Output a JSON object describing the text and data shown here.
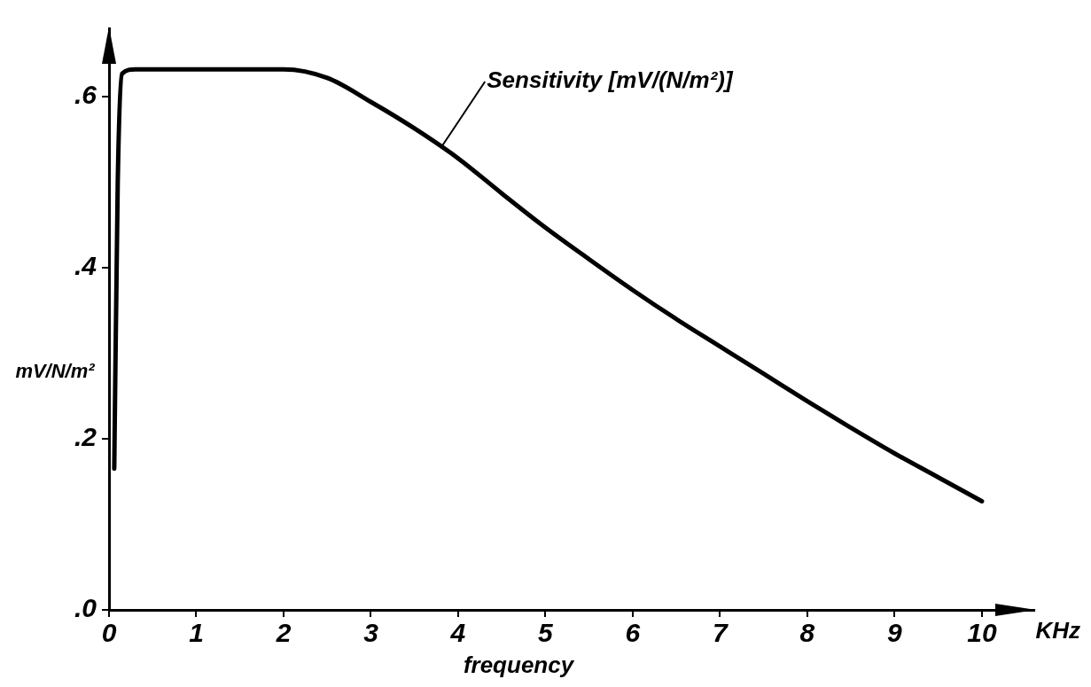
{
  "chart_data": {
    "type": "line",
    "xlabel": "frequency",
    "ylabel": "mV/N/m²",
    "xlim": [
      0,
      10.6
    ],
    "ylim": [
      0,
      0.68
    ],
    "xticks": [
      0,
      1,
      2,
      3,
      4,
      5,
      6,
      7,
      8,
      9,
      10
    ],
    "yticks": [
      {
        "value": 0,
        "label": ".0"
      },
      {
        "value": 0.2,
        "label": ".2"
      },
      {
        "value": 0.4,
        "label": ".4"
      },
      {
        "value": 0.6,
        "label": ".6"
      }
    ],
    "x": [
      0.06,
      0.1,
      0.15,
      0.3,
      1,
      2,
      2.5,
      3,
      3.5,
      4,
      4.5,
      5,
      5.5,
      6,
      6.5,
      7,
      7.5,
      8,
      8.5,
      9,
      9.5,
      10
    ],
    "series": [
      {
        "color": "#000000",
        "values": [
          0.165,
          0.5,
          0.627,
          0.632,
          0.632,
          0.632,
          0.622,
          0.594,
          0.563,
          0.528,
          0.487,
          0.447,
          0.41,
          0.374,
          0.34,
          0.308,
          0.276,
          0.244,
          0.213,
          0.183,
          0.155,
          0.127
        ]
      }
    ],
    "annotations": [
      {
        "text": "Sensitivity [mV/(N/m²)]",
        "x": 3.8,
        "y": 0.54
      },
      "KHz"
    ],
    "grid": false,
    "legend": false,
    "marker": "none",
    "line_style": "solid"
  }
}
